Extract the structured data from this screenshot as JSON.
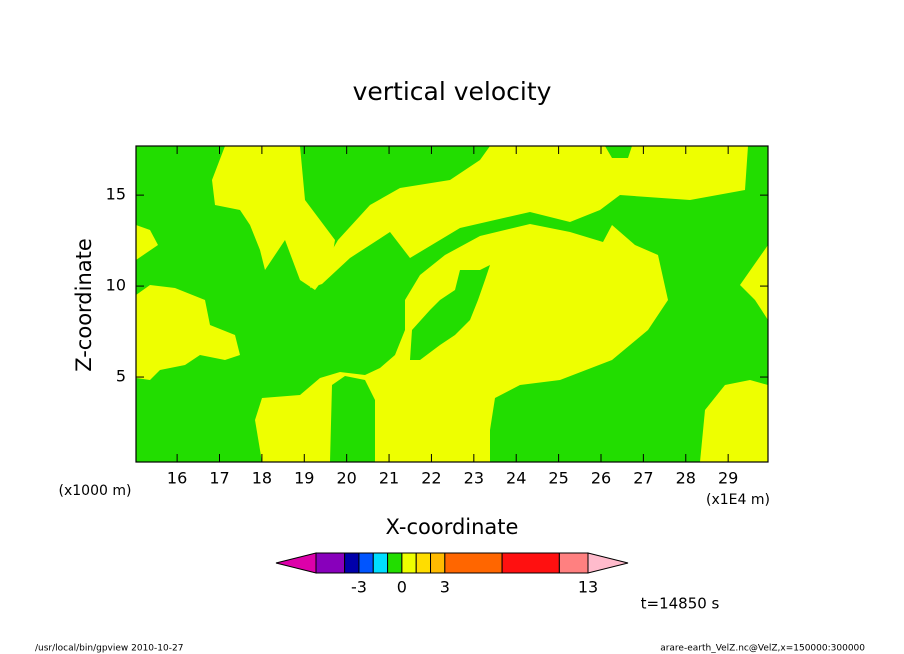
{
  "chart_data": {
    "type": "contour",
    "title": "vertical velocity",
    "xlabel": "X-coordinate",
    "ylabel": "Z-coordinate",
    "x_unit_note": "(x1000 m)",
    "x_scale_note": "(x1E4 m)",
    "time_note": "t=14850 s",
    "footer_left": "/usr/local/bin/gpview   2010-10-27",
    "footer_right": "arare-earth_VelZ.nc@VelZ,x=150000:300000",
    "xlim": [
      15.03,
      29.94
    ],
    "xticks": [
      16,
      17,
      18,
      19,
      20,
      21,
      22,
      23,
      24,
      25,
      26,
      27,
      28,
      29
    ],
    "ylim": [
      0.33,
      17.7
    ],
    "yticks": [
      5,
      10,
      15
    ],
    "colorbar": {
      "levels": [
        -6,
        -4,
        -3,
        -2,
        -1,
        0,
        1,
        2,
        3,
        7,
        11,
        13
      ],
      "colors": [
        "#dd00aa",
        "#8800bb",
        "#0000aa",
        "#0055ff",
        "#00ddff",
        "#22dd00",
        "#eeff00",
        "#ffdd00",
        "#ffbb00",
        "#ff6600",
        "#ff1010",
        "#ff8080",
        "#ffbbcc"
      ],
      "ticks": [
        -3,
        0,
        3,
        13
      ]
    }
  }
}
